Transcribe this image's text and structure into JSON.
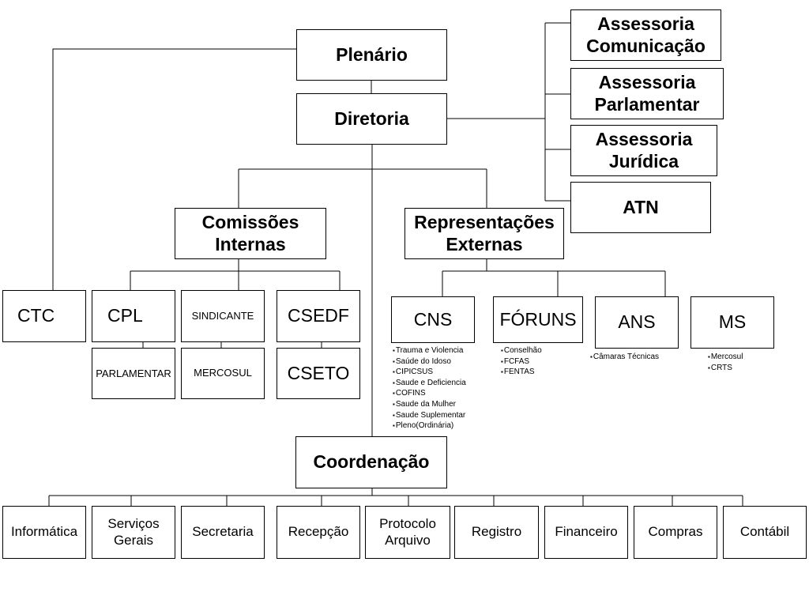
{
  "top": {
    "plenario": "Plenário",
    "diretoria": "Diretoria"
  },
  "assessorias": {
    "comunicacao": "Assessoria\nComunicação",
    "parlamentar": "Assessoria\nParlamentar",
    "juridica": "Assessoria\nJurídica",
    "atn": "ATN"
  },
  "comissoes": {
    "title": "Comissões\nInternas",
    "ctc": "CTC",
    "cpl": "CPL",
    "parlamentar": "PARLAMENTAR",
    "sindicante": "SINDICANTE",
    "mercosul": "MERCOSUL",
    "csedf": "CSEDF",
    "cseto": "CSETO"
  },
  "representacoes": {
    "title": "Representações\nExternas",
    "cns": "CNS",
    "cns_items": [
      "Trauma e Violencia",
      "Saúde do Idoso",
      "CIPICSUS",
      "Saude e Deficiencia",
      "COFINS",
      "Saude da Mulher",
      "Saude Suplementar",
      "Pleno(Ordinária)"
    ],
    "foruns": "FÓRUNS",
    "foruns_items": [
      "Conselhão",
      "FCFAS",
      "FENTAS"
    ],
    "ans": "ANS",
    "ans_items": [
      "Câmaras Técnicas"
    ],
    "ms": "MS",
    "ms_items": [
      "Mercosul",
      "CRTS"
    ]
  },
  "coordenacao": {
    "title": "Coordenação",
    "units": [
      "Informática",
      "Serviços\nGerais",
      "Secretaria",
      "Recepção",
      "Protocolo\nArquivo",
      "Registro",
      "Financeiro",
      "Compras",
      "Contábil"
    ]
  }
}
